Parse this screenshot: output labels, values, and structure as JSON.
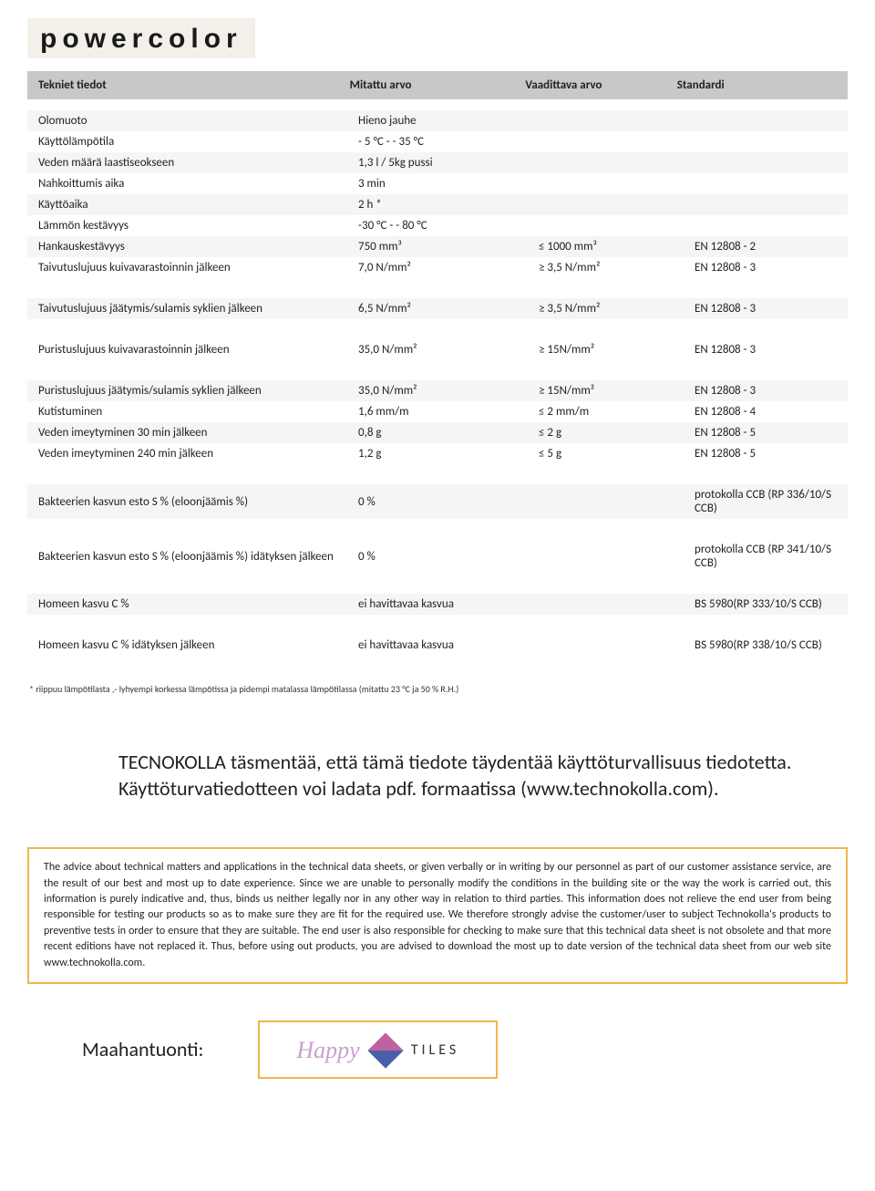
{
  "logo": "powercolor",
  "header": {
    "c1": "Tekniet tiedot",
    "c2": "Mitattu arvo",
    "c3": "Vaadittava arvo",
    "c4": "Standardi"
  },
  "rows": [
    {
      "stripe": "light",
      "c1": "Olomuoto",
      "c2": "Hieno jauhe",
      "c3": "",
      "c4": ""
    },
    {
      "stripe": "white",
      "c1": "Käyttölämpötila",
      "c2": "- 5 °C - - 35 °C",
      "c3": "",
      "c4": ""
    },
    {
      "stripe": "light",
      "c1": "Veden määrä laastiseokseen",
      "c2": "1,3 l / 5kg pussi",
      "c3": "",
      "c4": ""
    },
    {
      "stripe": "white",
      "c1": "Nahkoittumis aika",
      "c2": "3 min",
      "c3": "",
      "c4": ""
    },
    {
      "stripe": "light",
      "c1": "Käyttöaika",
      "c2": "2 h *",
      "c3": "",
      "c4": ""
    },
    {
      "stripe": "white",
      "c1": "Lämmön kestävyys",
      "c2": "-30 °C - - 80 °C",
      "c3": "",
      "c4": ""
    },
    {
      "stripe": "light",
      "c1": "Hankauskestävyys",
      "c2": "750 mm³",
      "c3": "≤ 1000 mm³",
      "c4": "EN 12808 - 2"
    },
    {
      "stripe": "white",
      "c1": "Taivutuslujuus kuivavarastoinnin jälkeen",
      "c2": "7,0 N/mm²",
      "c3": "≥ 3,5 N/mm²",
      "c4": "EN 12808 - 3"
    },
    {
      "gap": true
    },
    {
      "stripe": "light",
      "c1": "Taivutuslujuus jäätymis/sulamis syklien jälkeen",
      "c2": "6,5 N/mm²",
      "c3": "≥ 3,5 N/mm²",
      "c4": "EN 12808 - 3"
    },
    {
      "gap": true
    },
    {
      "stripe": "white",
      "c1": "Puristuslujuus kuivavarastoinnin jälkeen",
      "c2": "35,0 N/mm²",
      "c3": "≥ 15N/mm²",
      "c4": "EN 12808 - 3"
    },
    {
      "gap": true
    },
    {
      "stripe": "light",
      "c1": "Puristuslujuus jäätymis/sulamis syklien jälkeen",
      "c2": "35,0 N/mm²",
      "c3": "≥ 15N/mm²",
      "c4": "EN 12808 - 3"
    },
    {
      "stripe": "white",
      "c1": "Kutistuminen",
      "c2": "1,6 mm/m",
      "c3": "≤ 2 mm/m",
      "c4": "EN 12808 - 4"
    },
    {
      "stripe": "light",
      "c1": "Veden imeytyminen 30 min jälkeen",
      "c2": "0,8 g",
      "c3": "≤ 2 g",
      "c4": "EN 12808 - 5"
    },
    {
      "stripe": "white",
      "c1": "Veden imeytyminen 240 min jälkeen",
      "c2": "1,2 g",
      "c3": "≤ 5 g",
      "c4": "EN 12808 - 5"
    },
    {
      "gap": true
    },
    {
      "stripe": "light",
      "c1": "Bakteerien kasvun esto S % (eloonjäämis %)",
      "c2": "0 %",
      "c3": "",
      "c4": "protokolla CCB (RP 336/10/S CCB)"
    },
    {
      "gap": true
    },
    {
      "stripe": "white",
      "c1": "Bakteerien kasvun esto S % (eloonjäämis %) idätyksen jälkeen",
      "c2": "0 %",
      "c3": "",
      "c4": "protokolla CCB (RP 341/10/S CCB)"
    },
    {
      "gap": true
    },
    {
      "stripe": "light",
      "c1": "Homeen kasvu C %",
      "c2": "ei havittavaa kasvua",
      "c3": "",
      "c4": "BS 5980(RP 333/10/S CCB)"
    },
    {
      "gap": true
    },
    {
      "stripe": "white",
      "c1": "Homeen kasvu C % idätyksen jälkeen",
      "c2": "ei havittavaa kasvua",
      "c3": "",
      "c4": "BS 5980(RP 338/10/S CCB)"
    }
  ],
  "footnote": "* riippuu lämpötilasta ,- lyhyempi korkessa lämpötissa ja pidempi matalassa lämpötilassa (mitattu 23 °C ja 50 % R.H.)",
  "statement": "TECNOKOLLA täsmentää, että tämä tiedote täydentää käyttöturvallisuus tiedotetta. Käyttöturvatiedotteen voi ladata pdf. formaatissa (www.technokolla.com).",
  "disclaimer": "The advice about technical matters and applications in the technical data sheets, or given verbally or in writing by our personnel as part of our customer assistance service, are the result of our best and most up to date experience. Since we are unable to personally modify the conditions in the building site or the way the work is carried out, this information is purely indicative and, thus, binds us neither legally nor in any other way in relation to third parties. This information does not relieve the end user from being responsible for testing our products so as to make sure they are fit for the required use. We therefore strongly advise the customer/user to subject Technokolla's products to preventive tests in order to ensure that they are suitable. The end user is also responsible for checking to make sure that this technical data sheet is not obsolete and that more recent editions have not replaced it. Thus, before using out products, you are advised to download the most up to date version of the technical data sheet from our web site www.technokolla.com.",
  "importer_label": "Maahantuonti:",
  "tiles": {
    "happy": "Happy",
    "tiles": "TILES"
  }
}
